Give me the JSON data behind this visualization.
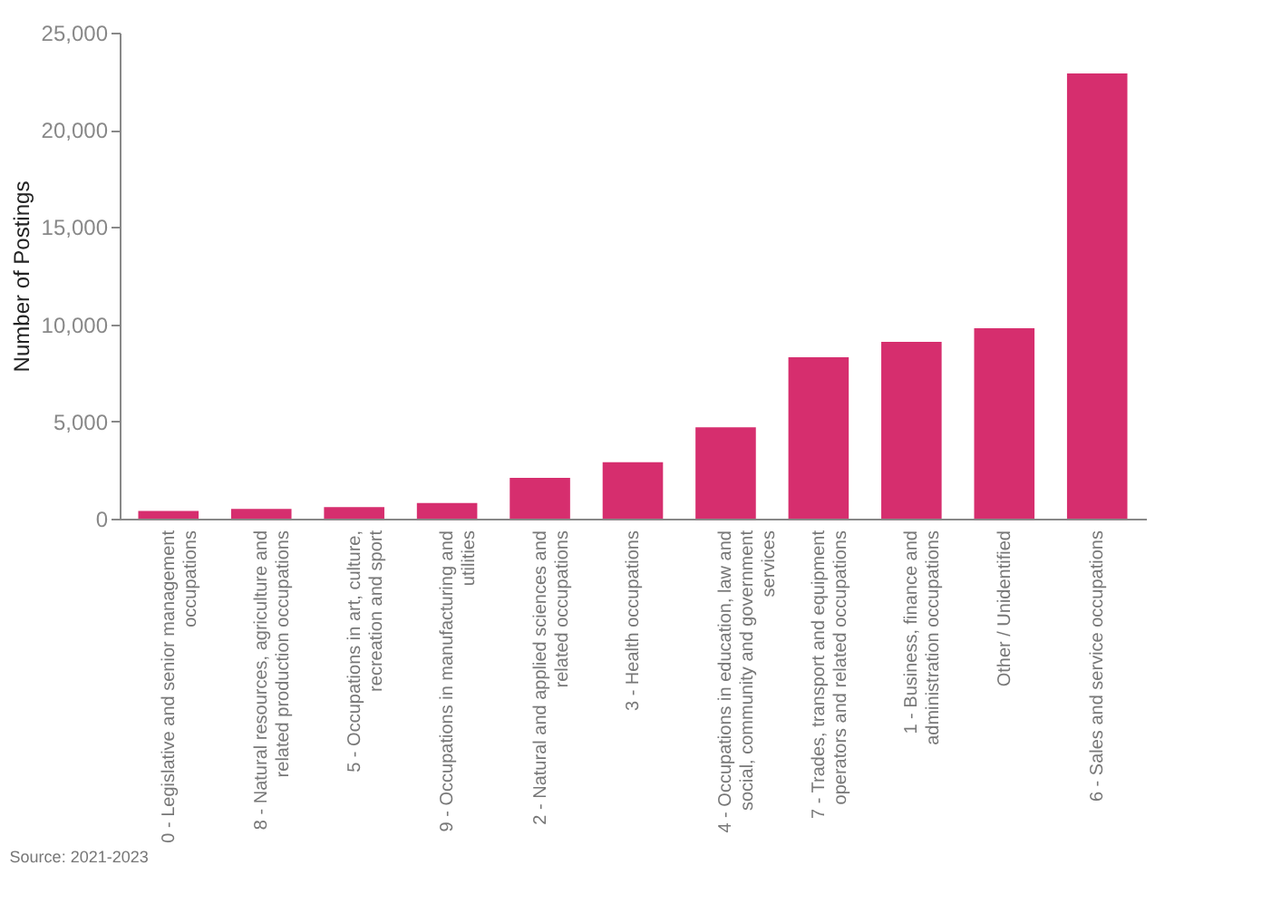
{
  "chart_data": {
    "type": "bar",
    "ylabel": "Number of Postings",
    "categories": [
      "0 - Legislative and senior management occupations",
      "8 - Natural resources, agriculture and related production occupations",
      "5 - Occupations in art, culture, recreation and sport",
      "9 - Occupations in manufacturing and utilities",
      "2 - Natural and applied sciences and related occupations",
      "3 - Health occupations",
      "4 - Occupations in education, law and social, community and government services",
      "7 - Trades, transport and equipment operators and related occupations",
      "1 - Business, finance and administration occupations",
      "Other / Unidentified",
      "6 - Sales and service occupations"
    ],
    "values": [
      400,
      500,
      600,
      800,
      2100,
      2900,
      4700,
      8300,
      9100,
      9800,
      22900
    ],
    "color": "#d62e6e",
    "ylim": [
      0,
      25000
    ],
    "yticks": [
      0,
      {
        "value": 5000,
        "label": "5,000"
      },
      {
        "value": 10000,
        "label": "10,000"
      },
      {
        "value": 15000,
        "label": "15,000"
      },
      {
        "value": 20000,
        "label": "20,000"
      },
      {
        "value": 25000,
        "label": "25,000"
      }
    ],
    "grid": false,
    "annotations": [
      "Source: 2021-2023"
    ]
  }
}
